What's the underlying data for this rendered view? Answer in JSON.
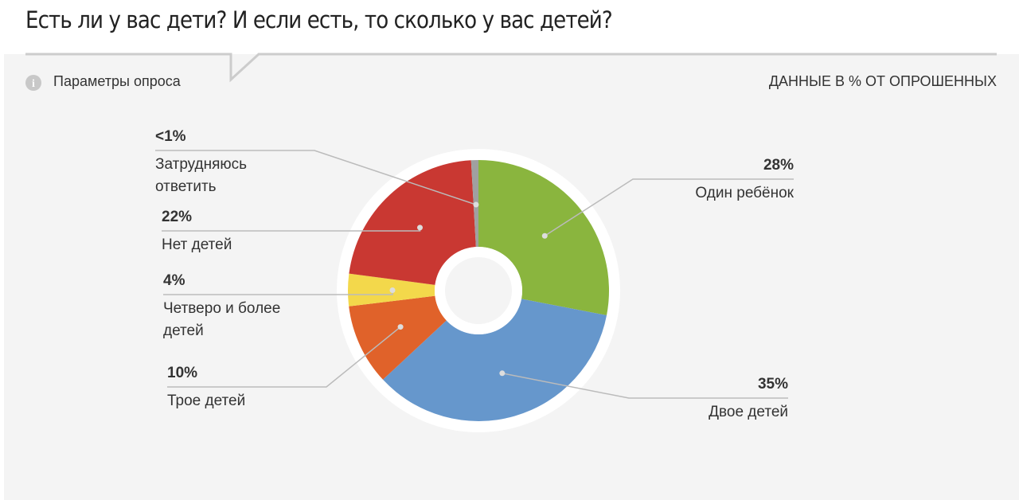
{
  "header": {
    "title": "Есть ли у вас дети? И если есть, то сколько у вас детей?",
    "params_link": "Параметры опроса",
    "units_note": "ДАННЫЕ В % ОТ ОПРОШЕННЫХ"
  },
  "chart_data": {
    "type": "pie",
    "donut": true,
    "categories": [
      "Один ребёнок",
      "Двое детей",
      "Трое детей",
      "Четверо и более детей",
      "Нет детей",
      "Затрудняюсь ответить"
    ],
    "values": [
      28,
      35,
      10,
      4,
      22,
      0.9
    ],
    "value_labels": [
      "28%",
      "35%",
      "10%",
      "4%",
      "22%",
      "<1%"
    ],
    "colors": [
      "#8ab53e",
      "#6697cc",
      "#e0622a",
      "#f3d84b",
      "#c93832",
      "#a0a0a0"
    ]
  }
}
